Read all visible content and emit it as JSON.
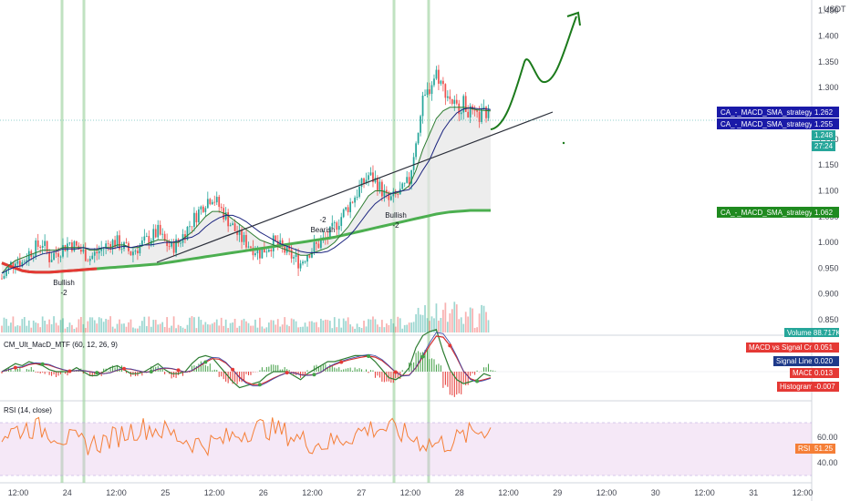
{
  "currency_label": "USDT",
  "colors": {
    "up": "#26a69a",
    "down": "#ef5350",
    "ma_fast": "#2e7d32",
    "ma_slow": "#1a237e",
    "ma_long": "#4caf50",
    "vline": "#a5d6a7",
    "rsi": "#f57f37",
    "rsi_band": "#e1bee7",
    "annotation": "#1b7a1b",
    "trendline": "#2a2e39",
    "macd_badge": "#e53935",
    "signal_badge": "#1e3a8a",
    "strategy_blue": "#1a1aa8",
    "strategy_green": "#1f8a1f",
    "price_badge": "#26a69a"
  },
  "price_axis": {
    "ticks": [
      "1.450",
      "1.400",
      "1.350",
      "1.300",
      "1.250",
      "1.200",
      "1.150",
      "1.100",
      "1.050",
      "1.000",
      "0.950",
      "0.900",
      "0.850"
    ],
    "min": 0.82,
    "max": 1.47
  },
  "time_axis": {
    "ticks": [
      "12:00",
      "24",
      "12:00",
      "25",
      "12:00",
      "26",
      "12:00",
      "27",
      "12:00",
      "28",
      "12:00",
      "29",
      "12:00",
      "30",
      "12:00",
      "31",
      "12:00"
    ]
  },
  "badges": {
    "strategy_plot_1": {
      "label": "CA_-_MACD_SMA_strategy:Plot",
      "value": "1.262"
    },
    "strategy_plot_2": {
      "label": "CA_-_MACD_SMA_strategy:Plot",
      "value": "1.255"
    },
    "last_price": "1.248",
    "countdown": "27:24",
    "strategy_plot_3": {
      "label": "CA_-_MACD_SMA_strategy:Plot",
      "value": "1.062"
    },
    "volume": "Volume 88.717K"
  },
  "markers": [
    {
      "label": "Bullish",
      "value": "-2"
    },
    {
      "label": "-2",
      "value": "Bearish"
    },
    {
      "label": "Bullish",
      "value": "-2"
    }
  ],
  "macd_pane": {
    "title": "CM_Ult_MacD_MTF (60, 12, 26, 9)",
    "badges": [
      {
        "label": "MACD vs Signal Cross",
        "value": "0.051"
      },
      {
        "label": "Signal Line",
        "value": "0.020"
      },
      {
        "label": "MACD",
        "value": "0.013"
      },
      {
        "label": "Histogram",
        "value": "-0.007"
      }
    ]
  },
  "rsi_pane": {
    "title": "RSI (14, close)",
    "ticks": [
      "60.00",
      "40.00"
    ],
    "badge": {
      "label": "RSI",
      "value": "51.25"
    }
  },
  "chart_data": {
    "type": "candlestick",
    "price_range": [
      0.82,
      1.47
    ],
    "close_series": [
      0.93,
      0.95,
      0.97,
      0.96,
      0.98,
      0.99,
      1.0,
      0.97,
      0.98,
      0.99,
      1.0,
      0.99,
      0.98,
      0.97,
      0.98,
      0.99,
      1.0,
      1.0,
      0.99,
      0.98,
      0.99,
      1.0,
      1.01,
      1.02,
      1.0,
      0.99,
      1.0,
      1.02,
      1.04,
      1.06,
      1.08,
      1.09,
      1.07,
      1.05,
      1.03,
      1.01,
      1.0,
      0.99,
      0.98,
      0.99,
      1.0,
      0.99,
      0.98,
      0.97,
      0.96,
      0.98,
      0.99,
      1.0,
      1.01,
      1.03,
      1.05,
      1.07,
      1.09,
      1.11,
      1.13,
      1.12,
      1.1,
      1.08,
      1.09,
      1.1,
      1.12,
      1.2,
      1.27,
      1.3,
      1.33,
      1.3,
      1.28,
      1.26,
      1.27,
      1.25,
      1.24,
      1.25,
      1.248
    ],
    "ma_fast_series": [
      0.94,
      0.955,
      0.965,
      0.97,
      0.975,
      0.98,
      0.985,
      0.985,
      0.985,
      0.99,
      0.99,
      0.99,
      0.99,
      0.985,
      0.985,
      0.99,
      0.99,
      0.995,
      0.995,
      0.99,
      0.99,
      0.995,
      1.0,
      1.005,
      1.005,
      1.0,
      1.0,
      1.01,
      1.02,
      1.035,
      1.05,
      1.06,
      1.06,
      1.055,
      1.045,
      1.035,
      1.025,
      1.015,
      1.005,
      1.0,
      0.995,
      0.99,
      0.985,
      0.98,
      0.975,
      0.975,
      0.98,
      0.985,
      0.99,
      1.0,
      1.015,
      1.03,
      1.05,
      1.07,
      1.09,
      1.1,
      1.1,
      1.095,
      1.095,
      1.1,
      1.11,
      1.14,
      1.18,
      1.21,
      1.24,
      1.255,
      1.262,
      1.262,
      1.262,
      1.26,
      1.257,
      1.256,
      1.255
    ],
    "ma_long_series": [
      0.96,
      0.955,
      0.95,
      0.945,
      0.943,
      0.942,
      0.942,
      0.942,
      0.943,
      0.944,
      0.945,
      0.946,
      0.947,
      0.948,
      0.949,
      0.95,
      0.951,
      0.952,
      0.953,
      0.954,
      0.955,
      0.956,
      0.957,
      0.958,
      0.96,
      0.962,
      0.964,
      0.966,
      0.968,
      0.97,
      0.972,
      0.974,
      0.976,
      0.978,
      0.98,
      0.982,
      0.984,
      0.986,
      0.988,
      0.99,
      0.992,
      0.994,
      0.996,
      0.998,
      1.0,
      1.002,
      1.004,
      1.006,
      1.008,
      1.01,
      1.013,
      1.016,
      1.019,
      1.022,
      1.025,
      1.028,
      1.031,
      1.034,
      1.037,
      1.04,
      1.043,
      1.046,
      1.049,
      1.052,
      1.055,
      1.057,
      1.059,
      1.06,
      1.061,
      1.062,
      1.062,
      1.062,
      1.062
    ]
  }
}
